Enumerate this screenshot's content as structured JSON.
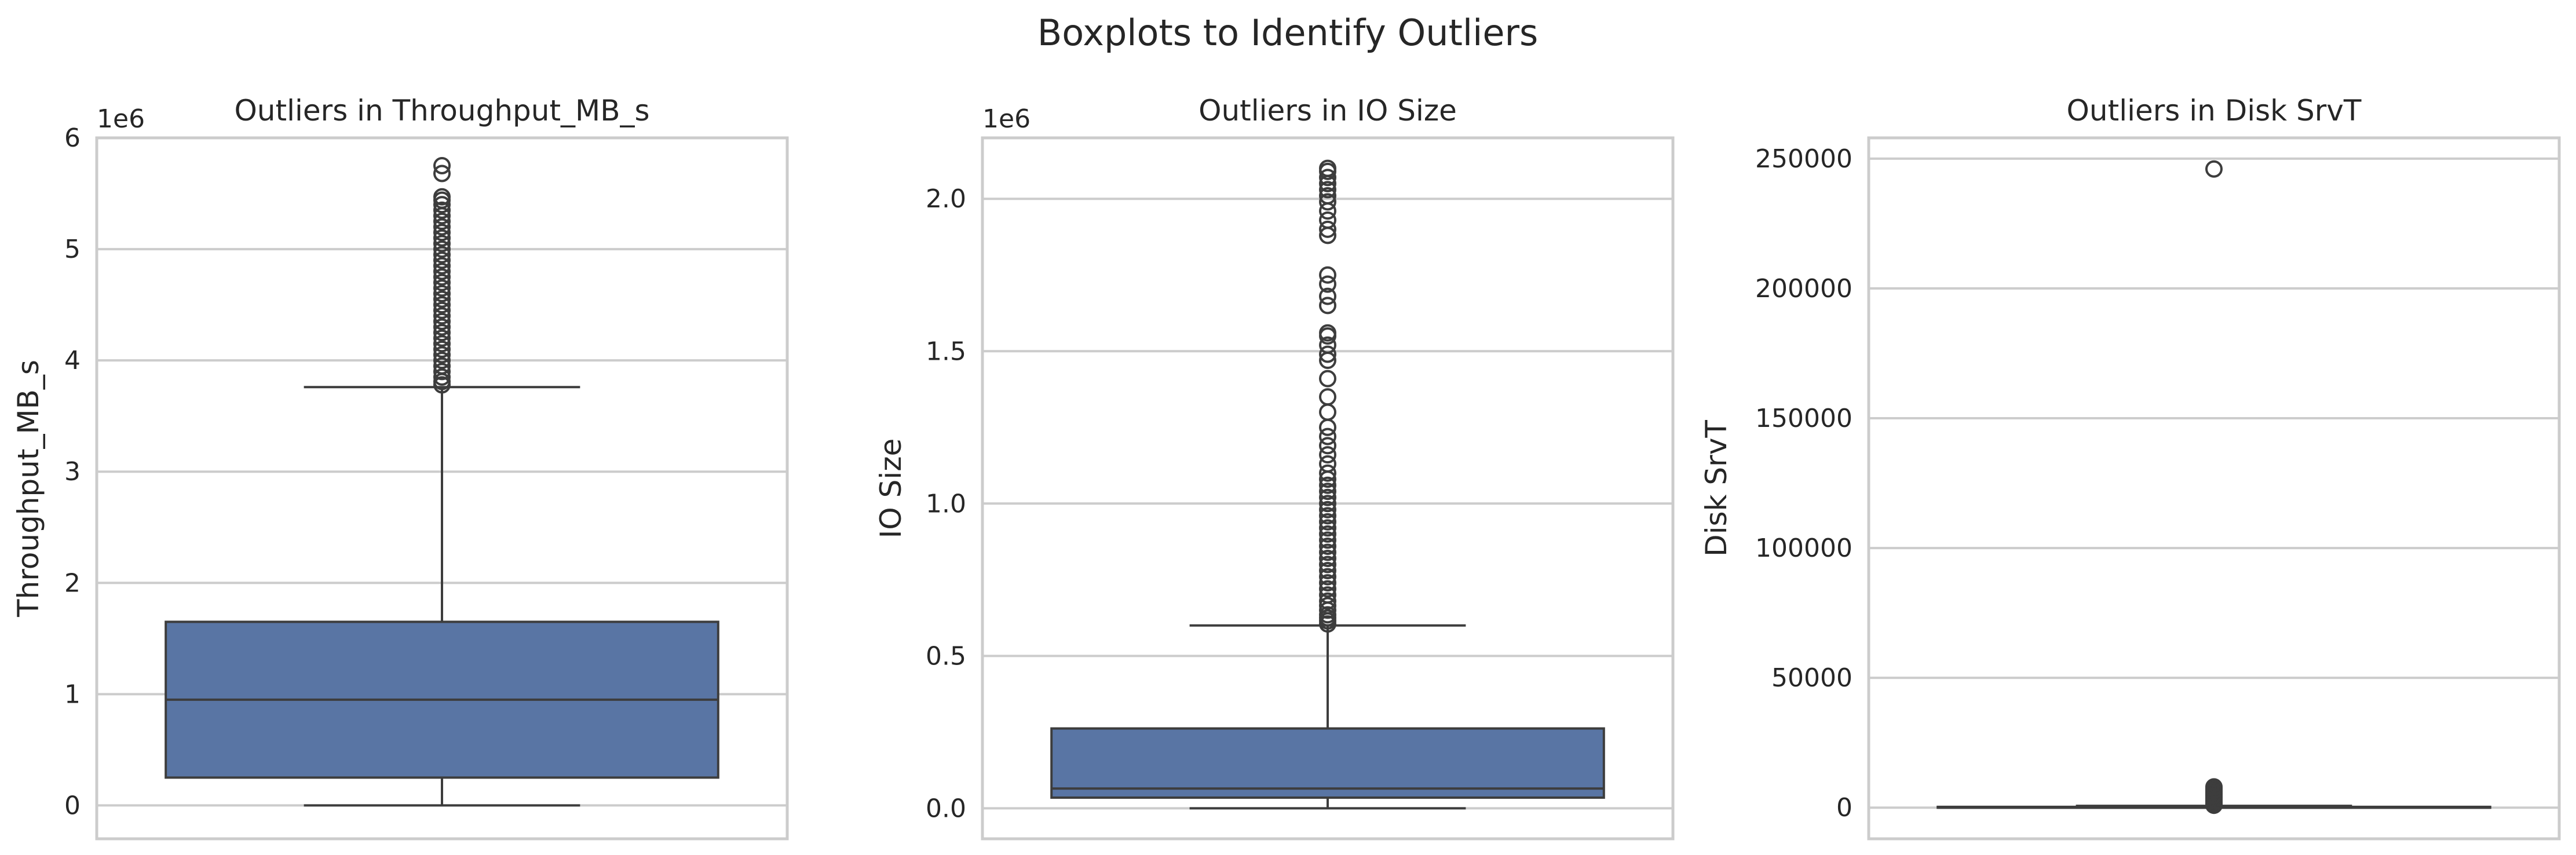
{
  "figure": {
    "suptitle": "Boxplots to Identify Outliers"
  },
  "colors": {
    "box": "#5975a4",
    "line": "#3d3d3d",
    "grid": "#cccccc",
    "background": "#ffffff"
  },
  "chart_data": [
    {
      "type": "box",
      "title": "Outliers in Throughput_MB_s",
      "ylabel": "Throughput_MB_s",
      "offset_label": "1e6",
      "ylim": [
        -300000,
        6000000
      ],
      "yticks": [
        0,
        1000000,
        2000000,
        3000000,
        4000000,
        5000000,
        6000000
      ],
      "ytick_labels": [
        "0",
        "1",
        "2",
        "3",
        "4",
        "5",
        "6"
      ],
      "grid": true,
      "box": {
        "whisker_low": 0,
        "q1": 250000,
        "median": 950000,
        "q3": 1650000,
        "whisker_high": 3760000
      },
      "fliers": [
        3780000,
        3810000,
        3850000,
        3900000,
        3950000,
        4000000,
        4050000,
        4100000,
        4150000,
        4200000,
        4250000,
        4300000,
        4350000,
        4400000,
        4450000,
        4500000,
        4550000,
        4600000,
        4650000,
        4700000,
        4750000,
        4800000,
        4850000,
        4900000,
        4950000,
        5000000,
        5050000,
        5100000,
        5150000,
        5200000,
        5250000,
        5300000,
        5350000,
        5400000,
        5440000,
        5470000,
        5680000,
        5750000
      ]
    },
    {
      "type": "box",
      "title": "Outliers in IO Size",
      "ylabel": "IO Size",
      "offset_label": "1e6",
      "ylim": [
        -100000,
        2200000
      ],
      "yticks": [
        0,
        500000,
        1000000,
        1500000,
        2000000
      ],
      "ytick_labels": [
        "0.0",
        "0.5",
        "1.0",
        "1.5",
        "2.0"
      ],
      "grid": true,
      "box": {
        "whisker_low": 0,
        "q1": 35000,
        "median": 65000,
        "q3": 262000,
        "whisker_high": 600000
      },
      "fliers": [
        605000,
        615000,
        625000,
        635000,
        650000,
        665000,
        680000,
        700000,
        720000,
        740000,
        760000,
        780000,
        800000,
        820000,
        840000,
        860000,
        880000,
        900000,
        920000,
        940000,
        960000,
        980000,
        1000000,
        1020000,
        1040000,
        1060000,
        1080000,
        1100000,
        1130000,
        1160000,
        1190000,
        1220000,
        1250000,
        1300000,
        1350000,
        1410000,
        1470000,
        1490000,
        1520000,
        1550000,
        1560000,
        1650000,
        1680000,
        1720000,
        1750000,
        1880000,
        1900000,
        1930000,
        1960000,
        1990000,
        2010000,
        2030000,
        2050000,
        2070000,
        2090000,
        2100000
      ]
    },
    {
      "type": "box",
      "title": "Outliers in Disk SrvT",
      "ylabel": "Disk SrvT",
      "offset_label": "",
      "ylim": [
        -12000,
        258000
      ],
      "yticks": [
        0,
        50000,
        100000,
        150000,
        200000,
        250000
      ],
      "ytick_labels": [
        "0",
        "50000",
        "100000",
        "150000",
        "200000",
        "250000"
      ],
      "grid": true,
      "box": {
        "whisker_low": 0,
        "q1": 0,
        "median": 0,
        "q3": 300,
        "whisker_high": 700
      },
      "fliers": [
        900,
        1500,
        2000,
        2500,
        3000,
        3500,
        4000,
        4500,
        5000,
        5500,
        6000,
        6500,
        7000,
        7500,
        8000,
        246000
      ]
    }
  ]
}
